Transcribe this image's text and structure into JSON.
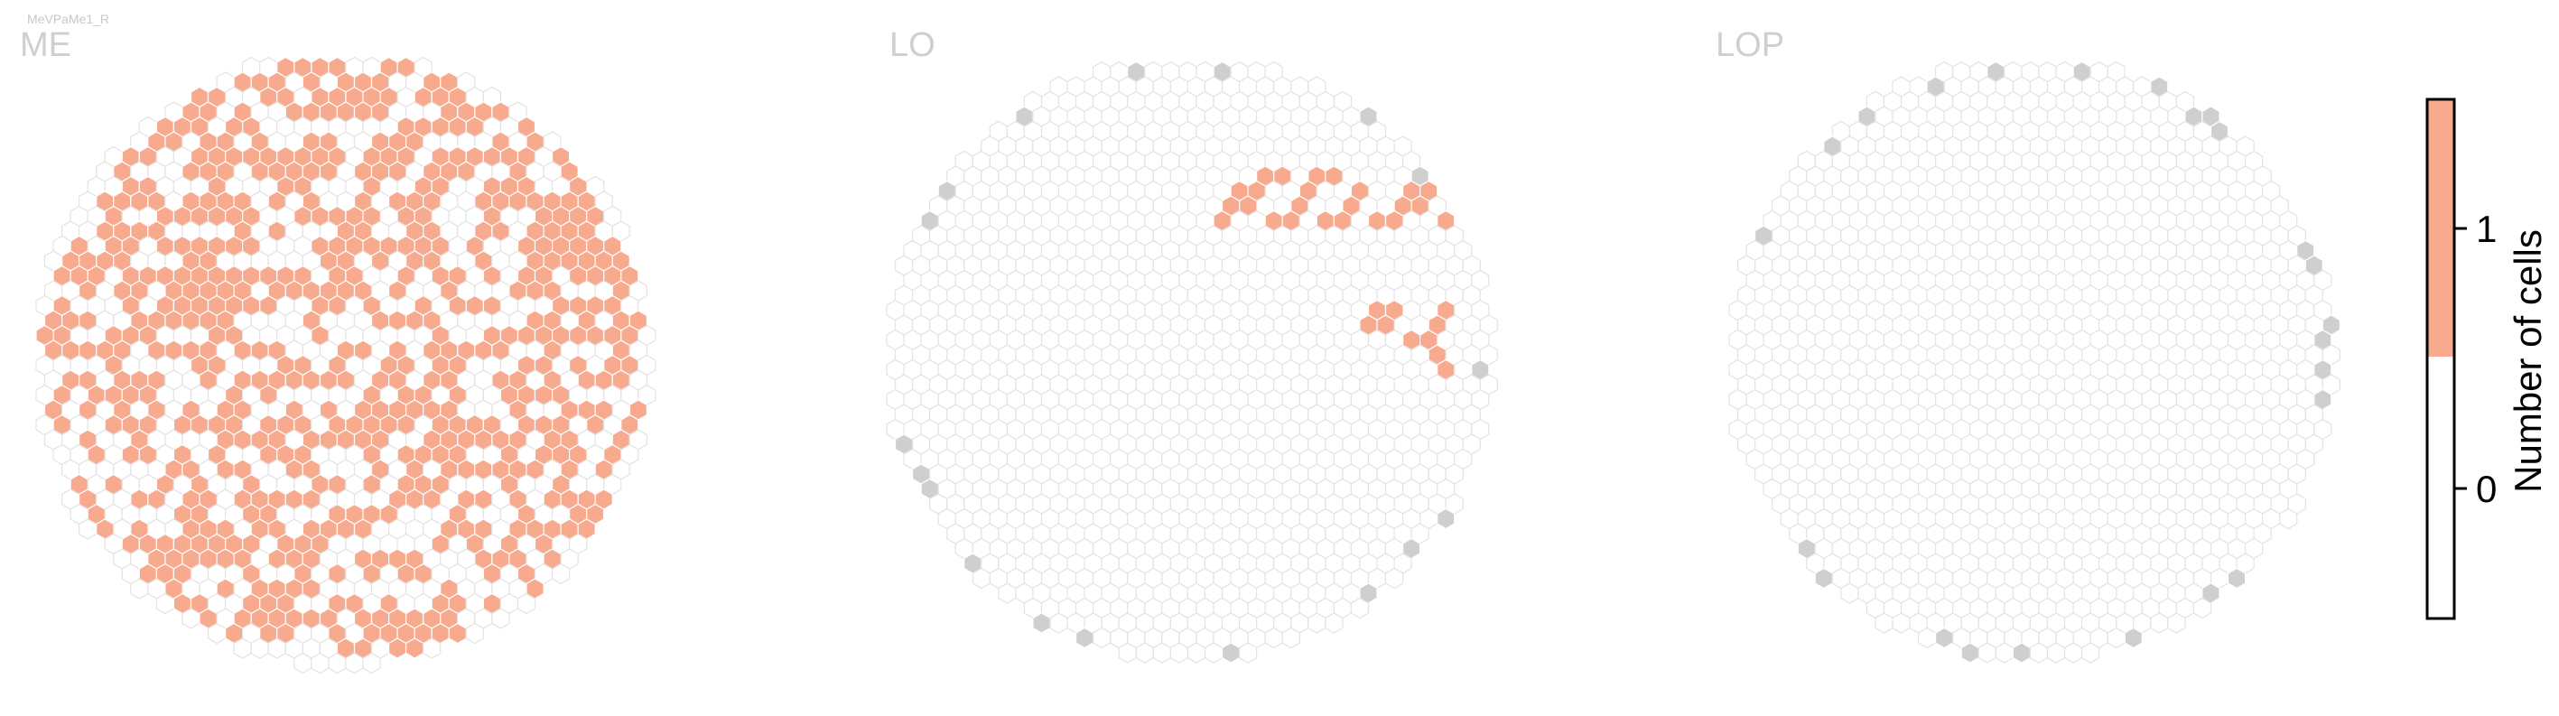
{
  "figure": {
    "subtitle": "MeVPaMe1_R"
  },
  "chart_data": {
    "type": "heatmap",
    "colors": {
      "zero_fill": "#ffffff",
      "zero_stroke": "#e3e3e3",
      "one_fill": "#f8aa8e",
      "edge_fill": "#cfcfcf"
    },
    "colorbar": {
      "label": "Number of cells",
      "ticks": [
        "0",
        "1"
      ],
      "range": [
        0,
        1
      ],
      "bins": [
        {
          "value": 0,
          "color": "#ffffff"
        },
        {
          "value": 1,
          "color": "#f8aa8e"
        }
      ]
    },
    "panels": [
      {
        "name": "ME",
        "fill_fraction": 0.55,
        "seed": 7,
        "edge_cells": []
      },
      {
        "name": "LO",
        "fill_fraction": 0,
        "seed": 11,
        "filled_cells": [
          [
            14,
            5
          ],
          [
            16,
            5
          ],
          [
            13,
            6
          ],
          [
            15,
            6
          ],
          [
            17,
            6
          ],
          [
            19,
            6
          ],
          [
            12,
            7
          ],
          [
            14,
            7
          ],
          [
            16,
            7
          ],
          [
            18,
            7
          ],
          [
            20,
            7
          ],
          [
            18,
            11
          ],
          [
            20,
            11
          ],
          [
            19,
            12
          ],
          [
            20,
            13
          ],
          [
            26,
            18
          ],
          [
            28,
            18
          ],
          [
            27,
            19
          ],
          [
            24,
            22
          ],
          [
            20,
            25
          ],
          [
            22,
            25
          ],
          [
            19,
            26
          ],
          [
            19,
            28
          ],
          [
            18,
            29
          ]
        ],
        "edge_cells": [
          [
            16,
            0
          ],
          [
            19,
            1
          ],
          [
            5,
            4
          ],
          [
            6,
            4
          ],
          [
            4,
            7
          ],
          [
            1,
            8
          ],
          [
            0,
            13
          ],
          [
            1,
            17
          ],
          [
            27,
            21
          ],
          [
            26,
            22
          ],
          [
            25,
            24
          ],
          [
            22,
            29
          ],
          [
            20,
            30
          ],
          [
            5,
            31
          ],
          [
            6,
            31
          ],
          [
            7,
            31
          ],
          [
            8,
            31
          ],
          [
            9,
            31
          ],
          [
            10,
            31
          ]
        ]
      },
      {
        "name": "LOP",
        "fill_fraction": 0,
        "seed": 13,
        "filled_cells": [],
        "edge_cells": [
          [
            8,
            1
          ],
          [
            10,
            0
          ],
          [
            12,
            0
          ],
          [
            13,
            1
          ],
          [
            7,
            1
          ],
          [
            6,
            2
          ],
          [
            5,
            3
          ],
          [
            4,
            3
          ],
          [
            4,
            4
          ],
          [
            3,
            4
          ],
          [
            3,
            5
          ],
          [
            2,
            6
          ],
          [
            2,
            7
          ],
          [
            1,
            8
          ],
          [
            1,
            9
          ],
          [
            0,
            10
          ],
          [
            0,
            11
          ],
          [
            0,
            12
          ],
          [
            0,
            14
          ],
          [
            -1,
            13
          ],
          [
            0,
            15
          ],
          [
            0,
            16
          ],
          [
            0,
            17
          ],
          [
            0,
            18
          ],
          [
            1,
            19
          ],
          [
            1,
            20
          ],
          [
            2,
            21
          ],
          [
            2,
            22
          ],
          [
            3,
            22
          ],
          [
            3,
            23
          ],
          [
            4,
            24
          ],
          [
            5,
            25
          ],
          [
            6,
            26
          ],
          [
            7,
            27
          ],
          [
            8,
            27
          ],
          [
            9,
            27
          ],
          [
            10,
            27
          ],
          [
            11,
            26
          ],
          [
            12,
            25
          ],
          [
            13,
            24
          ],
          [
            14,
            22
          ],
          [
            15,
            21
          ],
          [
            16,
            20
          ],
          [
            17,
            19
          ],
          [
            18,
            18
          ],
          [
            18,
            17
          ],
          [
            19,
            16
          ],
          [
            19,
            15
          ],
          [
            20,
            14
          ],
          [
            20,
            13
          ],
          [
            21,
            12
          ],
          [
            21,
            11
          ],
          [
            21,
            10
          ],
          [
            20,
            9
          ],
          [
            20,
            8
          ],
          [
            19,
            7
          ],
          [
            19,
            6
          ],
          [
            18,
            5
          ],
          [
            18,
            4
          ],
          [
            17,
            3
          ]
        ]
      }
    ]
  }
}
